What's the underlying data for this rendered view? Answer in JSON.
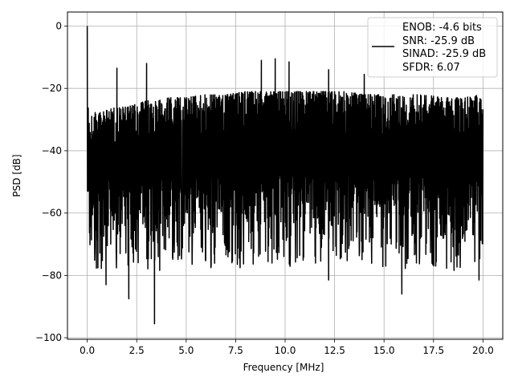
{
  "chart_data": {
    "type": "line",
    "title": "",
    "xlabel": "Frequency [MHz]",
    "ylabel": "PSD [dB]",
    "xlim": [
      -1.0,
      21.0
    ],
    "ylim": [
      -100.5,
      4.5
    ],
    "xticks": [
      0.0,
      2.5,
      5.0,
      7.5,
      10.0,
      12.5,
      15.0,
      17.5,
      20.0
    ],
    "xtick_labels": [
      "0.0",
      "2.5",
      "5.0",
      "7.5",
      "10.0",
      "12.5",
      "15.0",
      "17.5",
      "20.0"
    ],
    "yticks": [
      0,
      -20,
      -40,
      -60,
      -80,
      -100
    ],
    "ytick_labels": [
      "0",
      "−20",
      "−40",
      "−60",
      "−80",
      "−100"
    ],
    "grid": true,
    "line_color": "#000000",
    "legend_position": "top-right",
    "legend": {
      "lines": [
        "ENOB: -4.6 bits",
        "SNR: -25.9 dB",
        "SINAD: -25.9 dB",
        "SFDR: 6.07"
      ]
    },
    "series": [
      {
        "description": "dense noisy power spectral density trace",
        "x_range": [
          0.0,
          20.0
        ],
        "dc_peak": 0.0,
        "upper_envelope_x": [
          0.0,
          0.1,
          0.5,
          1.0,
          1.5,
          2.0,
          2.5,
          3.0,
          3.5,
          4.0,
          5.0,
          6.0,
          7.0,
          8.0,
          9.0,
          10.0,
          11.0,
          12.0,
          13.0,
          14.0,
          15.0,
          16.0,
          17.0,
          18.0,
          19.0,
          20.0
        ],
        "upper_envelope_y": [
          -25,
          -27,
          -28,
          -27,
          -26,
          -26,
          -25,
          -24,
          -24,
          -23,
          -23,
          -22,
          -22,
          -21,
          -21,
          -21,
          -21,
          -21,
          -21,
          -22,
          -22,
          -22,
          -22,
          -23,
          -23,
          -22
        ],
        "lower_envelope_y": [
          -70,
          -72,
          -74,
          -73,
          -73,
          -72,
          -72,
          -72,
          -72,
          -71,
          -71,
          -71,
          -71,
          -71,
          -71,
          -71,
          -71,
          -71,
          -71,
          -71,
          -71,
          -71,
          -72,
          -72,
          -72,
          -70
        ],
        "spurs": [
          {
            "x": 0.0,
            "y": 0.0
          },
          {
            "x": 1.5,
            "y": -13.5
          },
          {
            "x": 3.0,
            "y": -12.0
          },
          {
            "x": 8.8,
            "y": -11.0
          },
          {
            "x": 9.5,
            "y": -10.5
          },
          {
            "x": 10.2,
            "y": -11.5
          },
          {
            "x": 12.2,
            "y": -14.0
          },
          {
            "x": 14.0,
            "y": -15.5
          }
        ],
        "dips": [
          {
            "x": 0.95,
            "y": -83
          },
          {
            "x": 2.1,
            "y": -87.5
          },
          {
            "x": 3.4,
            "y": -95.5
          },
          {
            "x": 12.2,
            "y": -81.5
          },
          {
            "x": 15.9,
            "y": -86
          },
          {
            "x": 19.8,
            "y": -81.5
          }
        ]
      }
    ]
  }
}
